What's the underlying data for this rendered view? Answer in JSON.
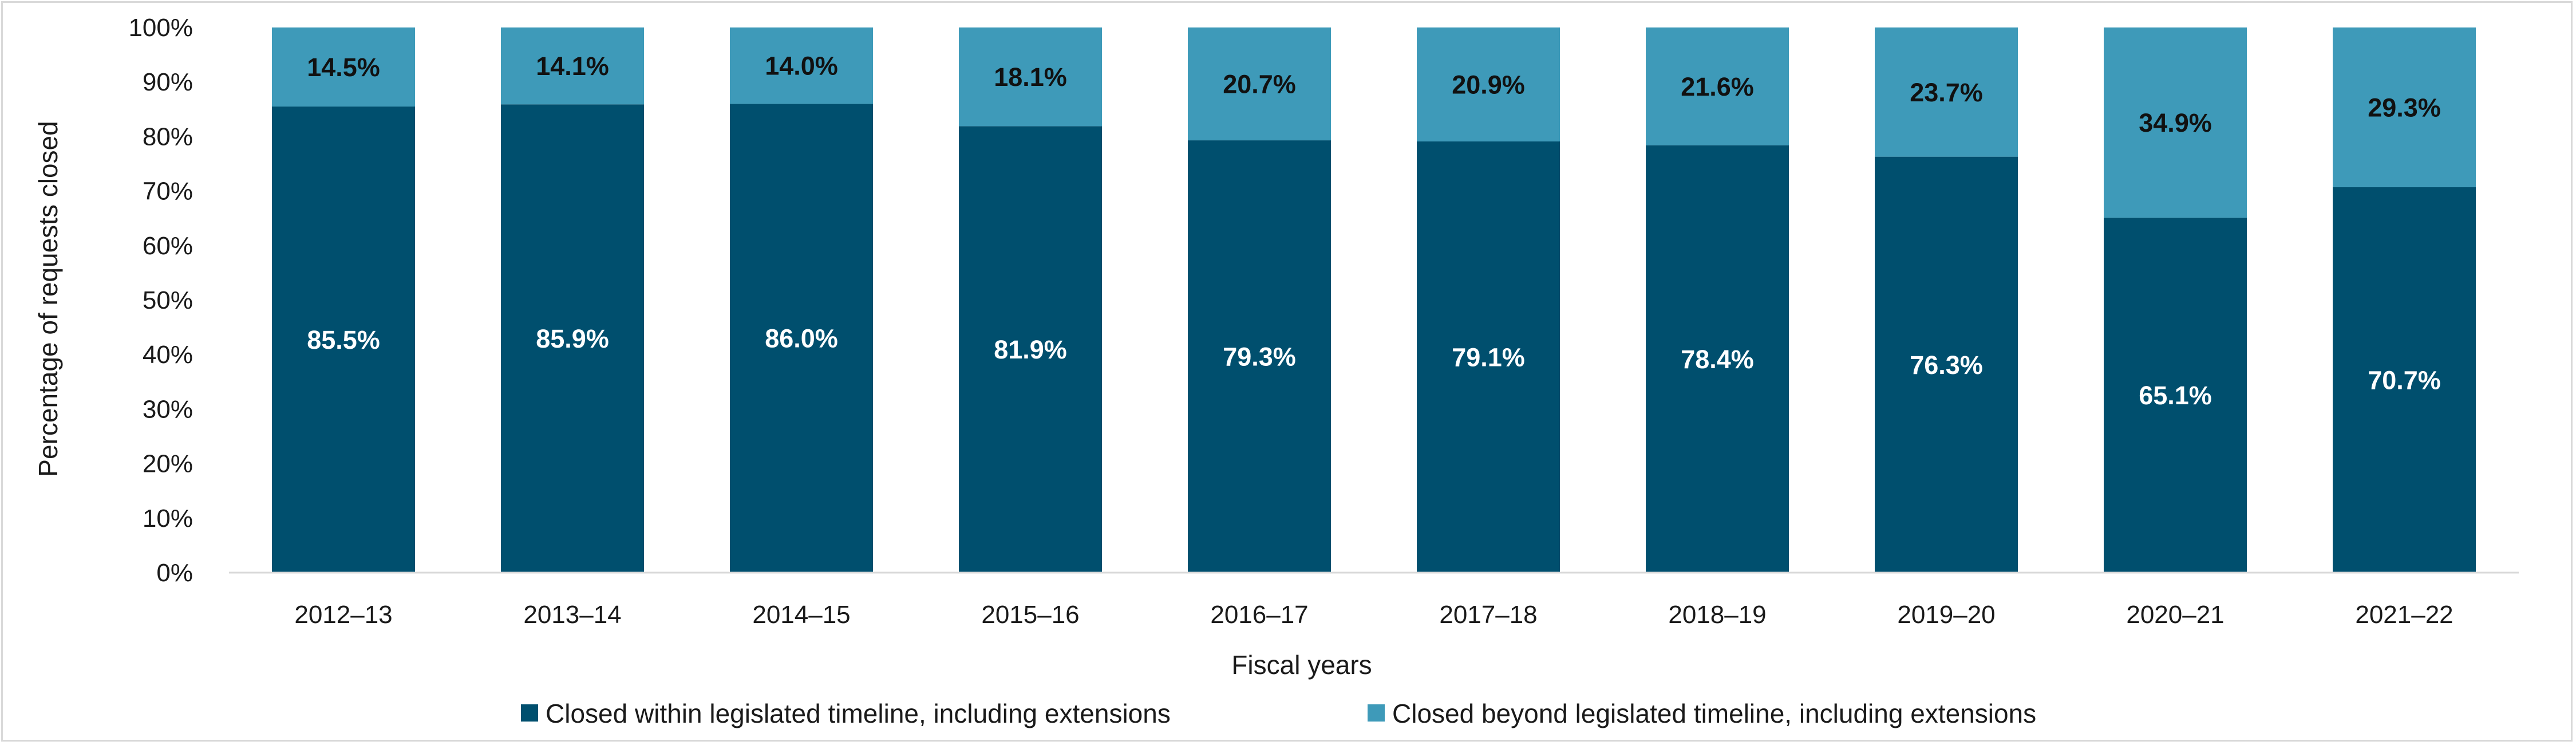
{
  "chart_data": {
    "type": "bar",
    "stacked": true,
    "xlabel": "Fiscal years",
    "ylabel": "Percentage of requests closed",
    "ylim": [
      0,
      100
    ],
    "y_ticks": [
      "0%",
      "10%",
      "20%",
      "30%",
      "40%",
      "50%",
      "60%",
      "70%",
      "80%",
      "90%",
      "100%"
    ],
    "grid": false,
    "legend_position": "bottom",
    "categories": [
      "2012–13",
      "2013–14",
      "2014–15",
      "2015–16",
      "2016–17",
      "2017–18",
      "2018–19",
      "2019–20",
      "2020–21",
      "2021–22"
    ],
    "series": [
      {
        "name": "Closed within legislated timeline, including extensions",
        "color": "#004f6e",
        "label_color": "#ffffff",
        "values": [
          85.5,
          85.9,
          86.0,
          81.9,
          79.3,
          79.1,
          78.4,
          76.3,
          65.1,
          70.7
        ],
        "labels": [
          "85.5%",
          "85.9%",
          "86.0%",
          "81.9%",
          "79.3%",
          "79.1%",
          "78.4%",
          "76.3%",
          "65.1%",
          "70.7%"
        ]
      },
      {
        "name": "Closed beyond legislated timeline, including extensions",
        "color": "#3e9ab9",
        "label_color": "#111111",
        "values": [
          14.5,
          14.1,
          14.0,
          18.1,
          20.7,
          20.9,
          21.6,
          23.7,
          34.9,
          29.3
        ],
        "labels": [
          "14.5%",
          "14.1%",
          "14.0%",
          "18.1%",
          "20.7%",
          "20.9%",
          "21.6%",
          "23.7%",
          "34.9%",
          "29.3%"
        ]
      }
    ]
  }
}
